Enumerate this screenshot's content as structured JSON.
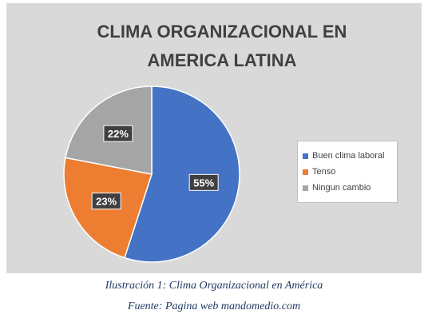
{
  "chart_data": {
    "type": "pie",
    "title_lines": [
      "CLIMA ORGANIZACIONAL  EN",
      "AMERICA LATINA"
    ],
    "categories": [
      "Buen clima laboral",
      "Tenso",
      "Ningun cambio"
    ],
    "values": [
      55,
      23,
      22
    ],
    "data_labels": [
      "55%",
      "23%",
      "22%"
    ],
    "colors": [
      "#4472c4",
      "#ed7d31",
      "#a5a5a5"
    ],
    "legend_position": "right"
  },
  "caption": "Ilustración 1: Clima Organizacional en América",
  "source": "Fuente: Pagina web mandomedio.com"
}
